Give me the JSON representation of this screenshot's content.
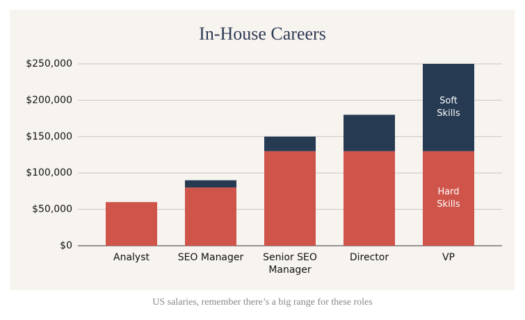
{
  "chart_data": {
    "type": "stacked_bar",
    "title": "In-House Careers",
    "caption": "US salaries, remember there’s a big range for these roles",
    "categories": [
      "Analyst",
      "SEO Manager",
      "Senior SEO Manager",
      "Director",
      "VP"
    ],
    "series": [
      {
        "name": "Hard Skills",
        "color": "#cf544a",
        "values": [
          60000,
          80000,
          130000,
          130000,
          130000
        ]
      },
      {
        "name": "Soft Skills",
        "color": "#263a52",
        "values": [
          null,
          10000,
          20000,
          50000,
          120000
        ]
      }
    ],
    "ylim": [
      0,
      250000
    ],
    "yticks": [
      {
        "value": 0,
        "label": "$0"
      },
      {
        "value": 50000,
        "label": "$50,000"
      },
      {
        "value": 100000,
        "label": "$100,000"
      },
      {
        "value": 150000,
        "label": "$150,000"
      },
      {
        "value": 200000,
        "label": "$200,000"
      },
      {
        "value": 250000,
        "label": "$250,000"
      }
    ],
    "grid": true
  }
}
